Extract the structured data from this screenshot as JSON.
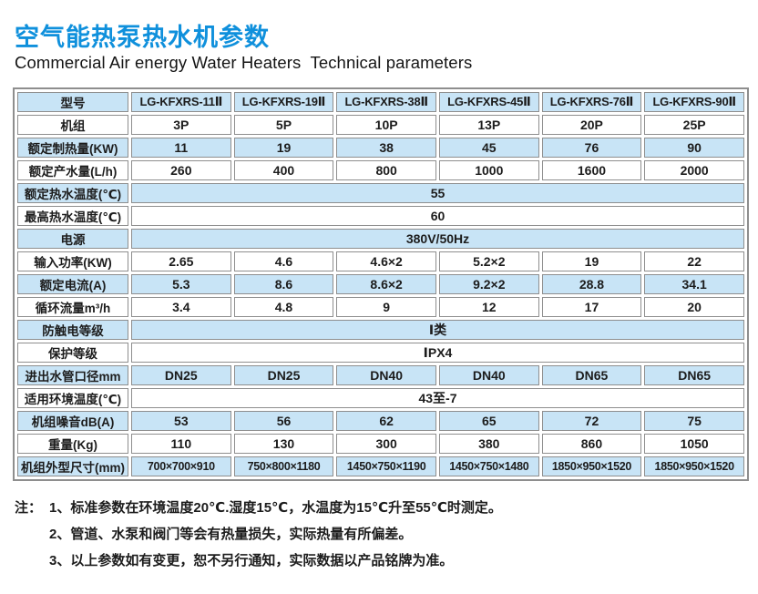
{
  "colors": {
    "accent": "#0f90dc",
    "row_blue": "#c8e4f6",
    "border_gray": "#8e8e8e",
    "text": "#1c1c1c"
  },
  "page": {
    "title": "空气能热泵热水机参数",
    "subtitle": "Commercial Air energy Water Heaters  Technical parameters"
  },
  "table": {
    "header": {
      "label": "型号",
      "models": [
        "LG-KFXRS-11Ⅱ",
        "LG-KFXRS-19Ⅱ",
        "LG-KFXRS-38Ⅱ",
        "LG-KFXRS-45Ⅱ",
        "LG-KFXRS-76Ⅱ",
        "LG-KFXRS-90Ⅱ"
      ]
    },
    "rows": [
      {
        "label": "机组",
        "values": [
          "3P",
          "5P",
          "10P",
          "13P",
          "20P",
          "25P"
        ]
      },
      {
        "label": "额定制热量(KW)",
        "values": [
          "11",
          "19",
          "38",
          "45",
          "76",
          "90"
        ]
      },
      {
        "label": "额定产水量(L/h)",
        "values": [
          "260",
          "400",
          "800",
          "1000",
          "1600",
          "2000"
        ]
      },
      {
        "label": "额定热水温度(℃)",
        "span": "55"
      },
      {
        "label": "最高热水温度(℃)",
        "span": "60"
      },
      {
        "label": "电源",
        "span": "380V/50Hz"
      },
      {
        "label": "输入功率(KW)",
        "values": [
          "2.65",
          "4.6",
          "4.6×2",
          "5.2×2",
          "19",
          "22"
        ]
      },
      {
        "label": "额定电流(A)",
        "values": [
          "5.3",
          "8.6",
          "8.6×2",
          "9.2×2",
          "28.8",
          "34.1"
        ]
      },
      {
        "label": "循环流量m³/h",
        "values": [
          "3.4",
          "4.8",
          "9",
          "12",
          "17",
          "20"
        ]
      },
      {
        "label": "防触电等级",
        "span": "Ⅰ类"
      },
      {
        "label": "保护等级",
        "span": "ⅠPX4"
      },
      {
        "label": "进出水管口径mm",
        "values": [
          "DN25",
          "DN25",
          "DN40",
          "DN40",
          "DN65",
          "DN65"
        ]
      },
      {
        "label": "适用环境温度(℃)",
        "span": "43至-7"
      },
      {
        "label": "机组噪音dB(A)",
        "values": [
          "53",
          "56",
          "62",
          "65",
          "72",
          "75"
        ]
      },
      {
        "label": "重量(Kg)",
        "values": [
          "110",
          "130",
          "300",
          "380",
          "860",
          "1050"
        ]
      },
      {
        "label": "机组外型尺寸(mm)",
        "values": [
          "700×700×910",
          "750×800×1180",
          "1450×750×1190",
          "1450×750×1480",
          "1850×950×1520",
          "1850×950×1520"
        ]
      }
    ]
  },
  "notes": {
    "prefix": "注：",
    "items": [
      "1、标准参数在环境温度20℃.湿度15℃，水温度为15℃升至55℃时测定。",
      "2、管道、水泵和阀门等会有热量损失，实际热量有所偏差。",
      "3、以上参数如有变更，恕不另行通知，实际数据以产品铭牌为准。"
    ]
  }
}
